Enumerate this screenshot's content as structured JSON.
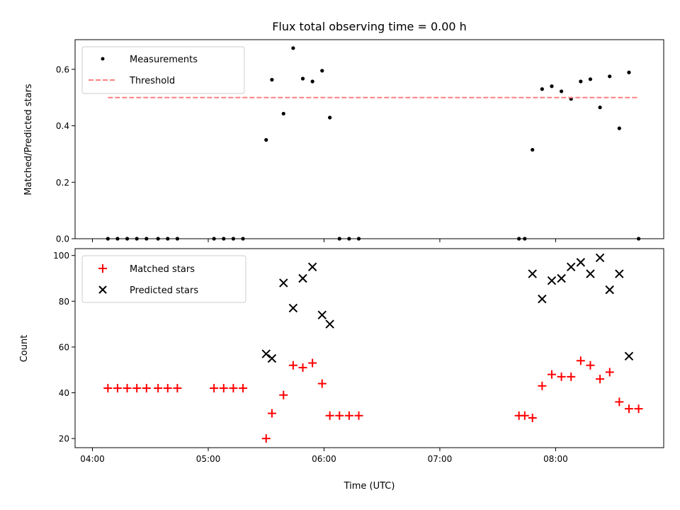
{
  "chart_data": [
    {
      "type": "scatter",
      "title": "Flux total observing time = 0.00 h",
      "xlabel": "",
      "ylabel": "Matched/Predicted stars",
      "ylim": [
        0,
        0.705
      ],
      "yticks": [
        0.0,
        0.2,
        0.4,
        0.6
      ],
      "ytick_labels": [
        "0.0",
        "0.2",
        "0.4",
        "0.6"
      ],
      "xlim": [
        "03:51",
        "08:56"
      ],
      "xticks": [
        "04:00",
        "05:00",
        "06:00",
        "07:00",
        "08:00"
      ],
      "xtick_labels_shown": false,
      "legend_position": "upper-left",
      "colors": {
        "measurements": "#000000",
        "threshold": "#ff8080"
      },
      "series": [
        {
          "name": "Measurements",
          "style": "dot",
          "points": [
            {
              "x": "04:08",
              "y": 0.0
            },
            {
              "x": "04:13",
              "y": 0.0
            },
            {
              "x": "04:18",
              "y": 0.0
            },
            {
              "x": "04:23",
              "y": 0.0
            },
            {
              "x": "04:28",
              "y": 0.0
            },
            {
              "x": "04:34",
              "y": 0.0
            },
            {
              "x": "04:39",
              "y": 0.0
            },
            {
              "x": "04:44",
              "y": 0.0
            },
            {
              "x": "05:03",
              "y": 0.0
            },
            {
              "x": "05:08",
              "y": 0.0
            },
            {
              "x": "05:13",
              "y": 0.0
            },
            {
              "x": "05:18",
              "y": 0.0
            },
            {
              "x": "05:30",
              "y": 0.35
            },
            {
              "x": "05:33",
              "y": 0.563
            },
            {
              "x": "05:39",
              "y": 0.443
            },
            {
              "x": "05:44",
              "y": 0.675
            },
            {
              "x": "05:49",
              "y": 0.567
            },
            {
              "x": "05:54",
              "y": 0.557
            },
            {
              "x": "05:59",
              "y": 0.595
            },
            {
              "x": "06:03",
              "y": 0.429
            },
            {
              "x": "06:08",
              "y": 0.0
            },
            {
              "x": "06:13",
              "y": 0.0
            },
            {
              "x": "06:18",
              "y": 0.0
            },
            {
              "x": "07:41",
              "y": 0.0
            },
            {
              "x": "07:44",
              "y": 0.0
            },
            {
              "x": "07:48",
              "y": 0.315
            },
            {
              "x": "07:53",
              "y": 0.53
            },
            {
              "x": "07:58",
              "y": 0.54
            },
            {
              "x": "08:03",
              "y": 0.522
            },
            {
              "x": "08:08",
              "y": 0.495
            },
            {
              "x": "08:13",
              "y": 0.557
            },
            {
              "x": "08:18",
              "y": 0.565
            },
            {
              "x": "08:23",
              "y": 0.465
            },
            {
              "x": "08:28",
              "y": 0.575
            },
            {
              "x": "08:33",
              "y": 0.391
            },
            {
              "x": "08:38",
              "y": 0.589
            },
            {
              "x": "08:43",
              "y": 0.0
            }
          ]
        },
        {
          "name": "Threshold",
          "style": "dashed-line",
          "points": [
            {
              "x": "04:08",
              "y": 0.5
            },
            {
              "x": "08:43",
              "y": 0.5
            }
          ]
        }
      ]
    },
    {
      "type": "scatter",
      "title": "",
      "xlabel": "Time (UTC)",
      "ylabel": "Count",
      "ylim": [
        16,
        103
      ],
      "yticks": [
        20,
        40,
        60,
        80,
        100
      ],
      "ytick_labels": [
        "20",
        "40",
        "60",
        "80",
        "100"
      ],
      "xlim": [
        "03:51",
        "08:56"
      ],
      "xticks": [
        "04:00",
        "05:00",
        "06:00",
        "07:00",
        "08:00"
      ],
      "xtick_labels": [
        "04:00",
        "05:00",
        "06:00",
        "07:00",
        "08:00"
      ],
      "legend_position": "upper-left",
      "colors": {
        "matched": "#ff0000",
        "predicted": "#000000"
      },
      "series": [
        {
          "name": "Matched stars",
          "marker": "plus",
          "points": [
            {
              "x": "04:08",
              "y": 42
            },
            {
              "x": "04:13",
              "y": 42
            },
            {
              "x": "04:18",
              "y": 42
            },
            {
              "x": "04:23",
              "y": 42
            },
            {
              "x": "04:28",
              "y": 42
            },
            {
              "x": "04:34",
              "y": 42
            },
            {
              "x": "04:39",
              "y": 42
            },
            {
              "x": "04:44",
              "y": 42
            },
            {
              "x": "05:03",
              "y": 42
            },
            {
              "x": "05:08",
              "y": 42
            },
            {
              "x": "05:13",
              "y": 42
            },
            {
              "x": "05:18",
              "y": 42
            },
            {
              "x": "05:30",
              "y": 20
            },
            {
              "x": "05:33",
              "y": 31
            },
            {
              "x": "05:39",
              "y": 39
            },
            {
              "x": "05:44",
              "y": 52
            },
            {
              "x": "05:49",
              "y": 51
            },
            {
              "x": "05:54",
              "y": 53
            },
            {
              "x": "05:59",
              "y": 44
            },
            {
              "x": "06:03",
              "y": 30
            },
            {
              "x": "06:08",
              "y": 30
            },
            {
              "x": "06:13",
              "y": 30
            },
            {
              "x": "06:18",
              "y": 30
            },
            {
              "x": "07:41",
              "y": 30
            },
            {
              "x": "07:44",
              "y": 30
            },
            {
              "x": "07:48",
              "y": 29
            },
            {
              "x": "07:53",
              "y": 43
            },
            {
              "x": "07:58",
              "y": 48
            },
            {
              "x": "08:03",
              "y": 47
            },
            {
              "x": "08:08",
              "y": 47
            },
            {
              "x": "08:13",
              "y": 54
            },
            {
              "x": "08:18",
              "y": 52
            },
            {
              "x": "08:23",
              "y": 46
            },
            {
              "x": "08:28",
              "y": 49
            },
            {
              "x": "08:33",
              "y": 36
            },
            {
              "x": "08:38",
              "y": 33
            },
            {
              "x": "08:43",
              "y": 33
            }
          ]
        },
        {
          "name": "Predicted stars",
          "marker": "x",
          "points": [
            {
              "x": "05:30",
              "y": 57
            },
            {
              "x": "05:33",
              "y": 55
            },
            {
              "x": "05:39",
              "y": 88
            },
            {
              "x": "05:44",
              "y": 77
            },
            {
              "x": "05:49",
              "y": 90
            },
            {
              "x": "05:54",
              "y": 95
            },
            {
              "x": "05:59",
              "y": 74
            },
            {
              "x": "06:03",
              "y": 70
            },
            {
              "x": "07:48",
              "y": 92
            },
            {
              "x": "07:53",
              "y": 81
            },
            {
              "x": "07:58",
              "y": 89
            },
            {
              "x": "08:03",
              "y": 90
            },
            {
              "x": "08:08",
              "y": 95
            },
            {
              "x": "08:13",
              "y": 97
            },
            {
              "x": "08:18",
              "y": 92
            },
            {
              "x": "08:23",
              "y": 99
            },
            {
              "x": "08:28",
              "y": 85
            },
            {
              "x": "08:33",
              "y": 92
            },
            {
              "x": "08:38",
              "y": 56
            }
          ]
        }
      ]
    }
  ]
}
